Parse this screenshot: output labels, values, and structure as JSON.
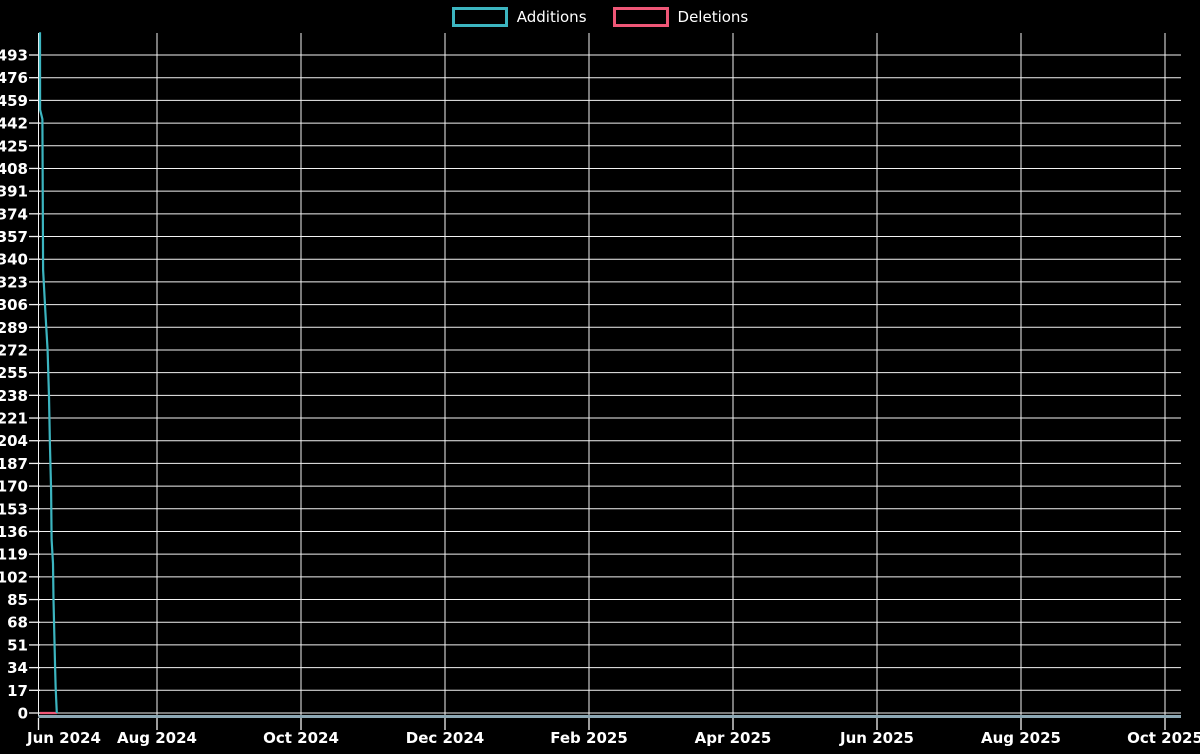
{
  "legend": [
    {
      "label": "Additions",
      "color": "#3cb5c0"
    },
    {
      "label": "Deletions",
      "color": "#ef5777"
    }
  ],
  "colors": {
    "background": "#000000",
    "grid": "#f2f2f2",
    "text": "#ffffff",
    "axis_baseline": "#8ea9b6",
    "additions": "#3cb5c0",
    "deletions": "#ef5777"
  },
  "chart_data": {
    "type": "line",
    "title": "",
    "grid": true,
    "legend_position": "top-center",
    "x": {
      "label": "",
      "type": "time",
      "tick_labels": [
        "Jun 2024",
        "Aug 2024",
        "Oct 2024",
        "Dec 2024",
        "Feb 2025",
        "Apr 2025",
        "Jun 2025",
        "Aug 2025",
        "Oct 2025"
      ]
    },
    "y": {
      "label": "",
      "min": 0,
      "max": 493,
      "ticks": [
        0,
        17,
        34,
        51,
        68,
        85,
        102,
        119,
        136,
        153,
        170,
        187,
        204,
        221,
        238,
        255,
        272,
        289,
        306,
        323,
        340,
        357,
        374,
        391,
        408,
        425,
        442,
        459,
        476,
        493
      ]
    },
    "series": [
      {
        "name": "Additions",
        "color": "#3cb5c0",
        "points_day_value": [
          [
            0,
            510
          ],
          [
            0.05,
            452
          ],
          [
            1.0,
            445
          ],
          [
            1.3,
            332
          ],
          [
            2.3,
            300
          ],
          [
            3.2,
            272
          ],
          [
            3.8,
            237
          ],
          [
            4.2,
            202
          ],
          [
            4.7,
            167
          ],
          [
            4.9,
            130
          ],
          [
            5.5,
            112
          ],
          [
            5.7,
            85
          ],
          [
            6.4,
            34
          ],
          [
            6.6,
            20
          ],
          [
            7.1,
            0
          ]
        ]
      },
      {
        "name": "Deletions",
        "color": "#ef5777",
        "points_day_value": [
          [
            0,
            0
          ],
          [
            7.1,
            0
          ]
        ]
      }
    ],
    "reading_note": "All plotted activity sits in a ~7-day window at the very start of the time axis (mid-June 2024): additions fall stepwise from ~510 down to 0; deletions stay flat at 0. Rest of axis through Oct 2025 has no data."
  }
}
